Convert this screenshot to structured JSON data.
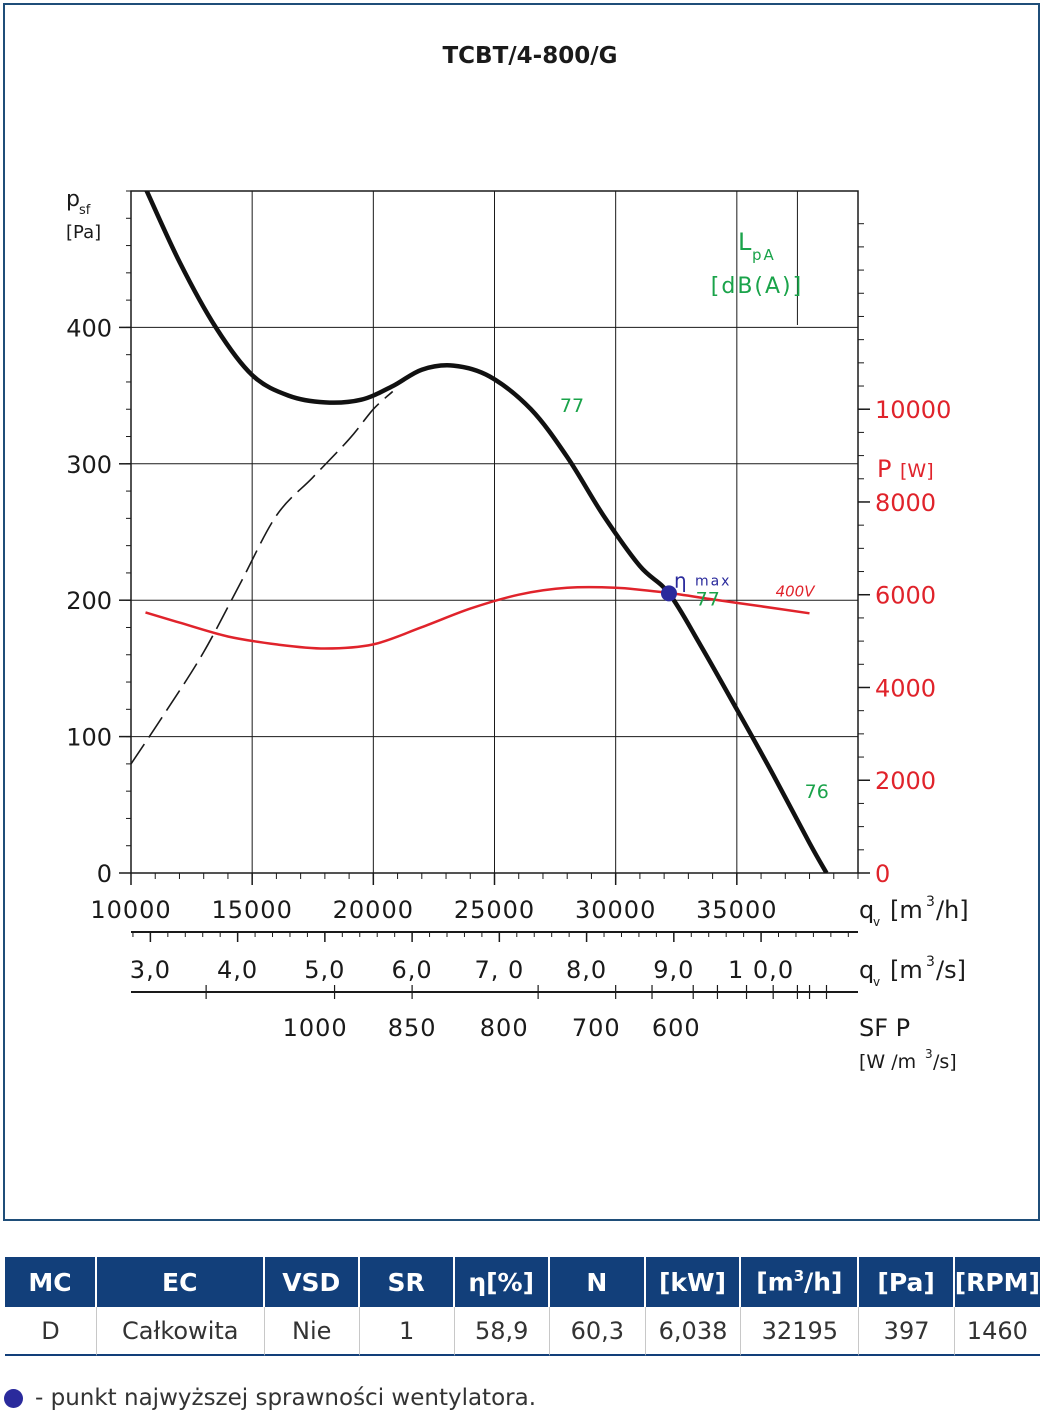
{
  "title": "TCBT/4-800/G",
  "colors": {
    "frame": "#1f4e79",
    "pressure": "#111111",
    "power": "#e0232b",
    "sound": "#1aa34a",
    "eta": "#2a2a9c",
    "header": "#123f7a"
  },
  "chart_data": {
    "type": "line",
    "title": "TCBT/4-800/G",
    "xlabel_top": [
      "q",
      "v",
      "[m",
      "3",
      "/h]"
    ],
    "ylabel_left": [
      "p",
      "sf",
      "[Pa]"
    ],
    "ylabel_right": [
      "P",
      "[W]"
    ],
    "sound_label": [
      "L",
      "pA",
      "[dB(A)]"
    ],
    "xlim": [
      10000,
      40000
    ],
    "ylim": [
      0,
      500
    ],
    "y2lim": [
      0,
      14705
    ],
    "x_ticks": [
      10000,
      15000,
      20000,
      25000,
      30000,
      35000
    ],
    "x_tick_labels": [
      "10000",
      "15000",
      "20000",
      "25000",
      "30000",
      "35000"
    ],
    "y_ticks": [
      0,
      100,
      200,
      300,
      400
    ],
    "y_tick_labels": [
      "0",
      "100",
      "200",
      "300",
      "400"
    ],
    "y2_ticks": [
      0,
      2000,
      4000,
      6000,
      8000,
      10000
    ],
    "y2_tick_labels": [
      "0",
      "2000",
      "4000",
      "6000",
      "8000",
      "10000"
    ],
    "m3s_axis": {
      "label": [
        "q",
        "v",
        "[m",
        "3",
        "/s]"
      ],
      "ticks": [
        3.0,
        4.0,
        5.0,
        6.0,
        7.0,
        8.0,
        9.0,
        10.0
      ],
      "tick_labels": [
        "3,0",
        "4,0",
        "5,0",
        "6,0",
        "7, 0",
        "8,0",
        "9,0",
        "1 0,0"
      ]
    },
    "sfp_axis": {
      "label": "SF P",
      "unit": [
        "[W /m",
        "3",
        "/s]"
      ],
      "tick_labels": [
        "1000",
        "850",
        "800",
        "700",
        "600"
      ],
      "tick_x": [
        13100,
        18400,
        21600,
        26800,
        30000,
        31500,
        33200,
        34200,
        35400,
        36500,
        37500,
        38000,
        38700
      ],
      "labeled_x": [
        17600,
        21600,
        25400,
        29200,
        32500
      ]
    },
    "series": [
      {
        "name": "pressure",
        "axis": "left",
        "x": [
          10600,
          12000,
          13500,
          15000,
          16500,
          18000,
          19500,
          20800,
          22000,
          23300,
          24800,
          26500,
          28000,
          29500,
          31000,
          32200,
          33500,
          35000,
          36500,
          38000,
          38700
        ],
        "y": [
          502,
          448,
          400,
          365,
          350,
          345,
          347,
          357,
          369,
          372,
          364,
          340,
          305,
          262,
          225,
          205,
          167,
          120,
          72,
          22,
          0
        ]
      },
      {
        "name": "system",
        "axis": "left",
        "style": "dashed",
        "x": [
          10000,
          11500,
          13000,
          14500,
          16000,
          17500,
          19000,
          20000,
          20800
        ],
        "y": [
          80,
          120,
          162,
          212,
          262,
          290,
          318,
          340,
          353
        ]
      },
      {
        "name": "400V",
        "axis": "right",
        "x": [
          10600,
          12000,
          14000,
          16000,
          18000,
          20000,
          22000,
          24000,
          26000,
          28000,
          30000,
          32000,
          34000,
          36000,
          38000
        ],
        "y": [
          5620,
          5400,
          5100,
          4930,
          4840,
          4930,
          5300,
          5700,
          6000,
          6150,
          6150,
          6050,
          5900,
          5750,
          5600
        ]
      }
    ],
    "sound_points": [
      {
        "label": "77",
        "x": 27700,
        "y": 338
      },
      {
        "label": "77",
        "x": 33300,
        "y": 196
      },
      {
        "label": "76",
        "x": 37800,
        "y": 55
      }
    ],
    "eta_max": {
      "x": 32200,
      "y": 205,
      "label": "η",
      "sub": "max"
    },
    "power_label": "400V"
  },
  "table": {
    "headers": [
      {
        "text": "MC"
      },
      {
        "text": "EC"
      },
      {
        "text": "VSD"
      },
      {
        "text": "SR"
      },
      {
        "text": "η[%]"
      },
      {
        "text": "N"
      },
      {
        "text": "[kW]"
      },
      {
        "text": "[m",
        "sup": "3",
        "after": "/h]"
      },
      {
        "text": "[Pa]"
      },
      {
        "text": "[RPM]"
      }
    ],
    "row": [
      "D",
      "Całkowita",
      "Nie",
      "1",
      "58,9",
      "60,3",
      "6,038",
      "32195",
      "397",
      "1460"
    ]
  },
  "legend_note": "- punkt najwyższej sprawności wentylatora."
}
